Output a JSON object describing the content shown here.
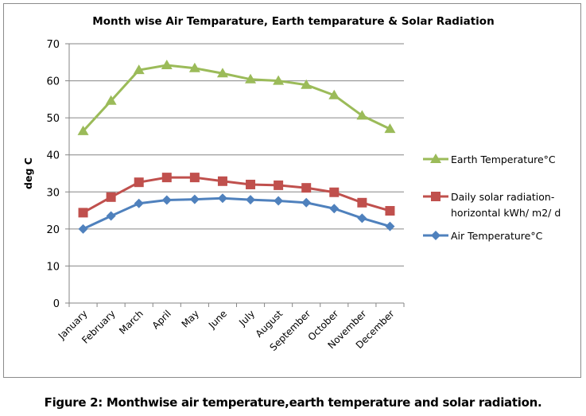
{
  "chart_data": {
    "type": "line",
    "title": "Month wise Air Temparature, Earth temparature & Solar Radiation",
    "xlabel": "",
    "ylabel": "deg C",
    "ylim": [
      0,
      70
    ],
    "yticks": [
      0,
      10,
      20,
      30,
      40,
      50,
      60,
      70
    ],
    "grid": true,
    "legend_position": "right",
    "categories": [
      "January",
      "February",
      "March",
      "April",
      "May",
      "June",
      "July",
      "August",
      "September",
      "October",
      "November",
      "December"
    ],
    "series": [
      {
        "name": "Earth Temperature°C",
        "legend_label": [
          "Earth Temperature°C"
        ],
        "color": "#9bbb59",
        "marker": "triangle",
        "values": [
          46.4,
          54.6,
          62.9,
          64.2,
          63.4,
          62.0,
          60.4,
          60.0,
          58.9,
          56.1,
          50.6,
          47.0
        ]
      },
      {
        "name": "Daily solar radiation-horizontal kWh/ m2/ d",
        "legend_label": [
          "Daily solar radiation-",
          "horizontal kWh/ m2/ d"
        ],
        "color": "#c0504d",
        "marker": "square",
        "values": [
          24.4,
          28.6,
          32.6,
          33.9,
          33.9,
          32.9,
          32.0,
          31.8,
          31.1,
          29.9,
          27.1,
          24.9
        ]
      },
      {
        "name": "Air Temperature°C",
        "legend_label": [
          "Air Temperature°C"
        ],
        "color": "#4f81bd",
        "marker": "diamond",
        "values": [
          20.0,
          23.5,
          26.9,
          27.8,
          28.0,
          28.3,
          27.9,
          27.6,
          27.1,
          25.5,
          22.9,
          20.7
        ]
      }
    ]
  },
  "caption": "Figure 2: Monthwise air temperature,earth temperature and solar radiation."
}
